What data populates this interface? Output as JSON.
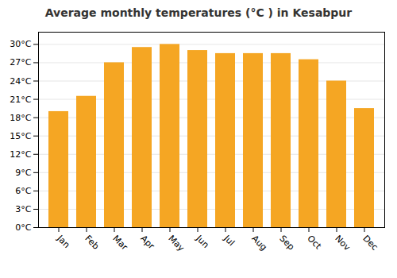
{
  "chart_data": {
    "type": "bar",
    "title": "Average monthly temperatures (°C ) in Kesabpur",
    "categories": [
      "Jan",
      "Feb",
      "Mar",
      "Apr",
      "May",
      "Jun",
      "Jul",
      "Aug",
      "Sep",
      "Oct",
      "Nov",
      "Dec"
    ],
    "values": [
      19.0,
      21.5,
      27.0,
      29.5,
      30.0,
      29.0,
      28.5,
      28.5,
      28.5,
      27.5,
      24.0,
      19.5
    ],
    "color": "#F5A623",
    "ylim": [
      0,
      32
    ],
    "yticks": [
      {
        "value": 0,
        "label": "0°C"
      },
      {
        "value": 3,
        "label": "3°C"
      },
      {
        "value": 6,
        "label": "6°C"
      },
      {
        "value": 9,
        "label": "9°C"
      },
      {
        "value": 12,
        "label": "12°C"
      },
      {
        "value": 15,
        "label": "15°C"
      },
      {
        "value": 18,
        "label": "18°C"
      },
      {
        "value": 21,
        "label": "21°C"
      },
      {
        "value": 24,
        "label": "24°C"
      },
      {
        "value": 27,
        "label": "27°C"
      },
      {
        "value": 30,
        "label": "30°C"
      }
    ],
    "grid": true
  }
}
